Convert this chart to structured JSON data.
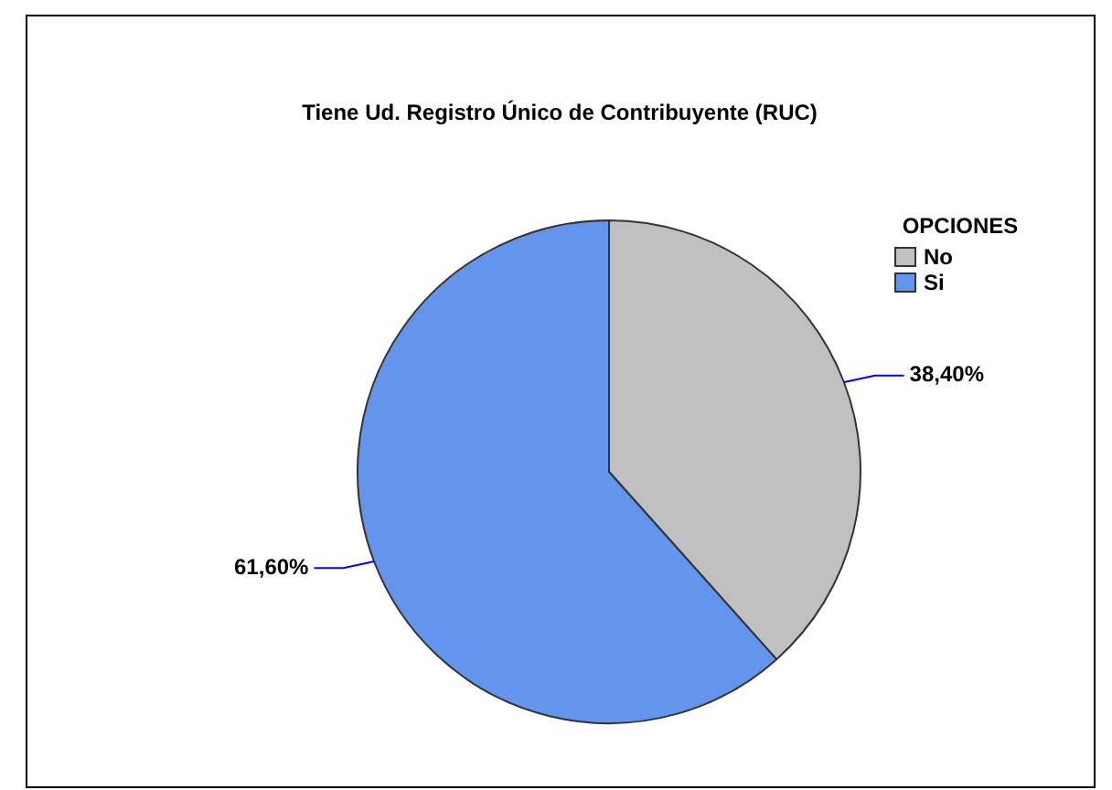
{
  "chart_data": {
    "type": "pie",
    "title": "Tiene Ud. Registro Único de Contribuyente (RUC)",
    "legend_title": "OPCIONES",
    "legend": "top right",
    "categories": [
      "No",
      "Si"
    ],
    "values": [
      38.4,
      61.6
    ],
    "colors": [
      "#c0c0c0",
      "#6495ed"
    ],
    "value_labels": [
      "38,40%",
      "61,60%"
    ]
  }
}
